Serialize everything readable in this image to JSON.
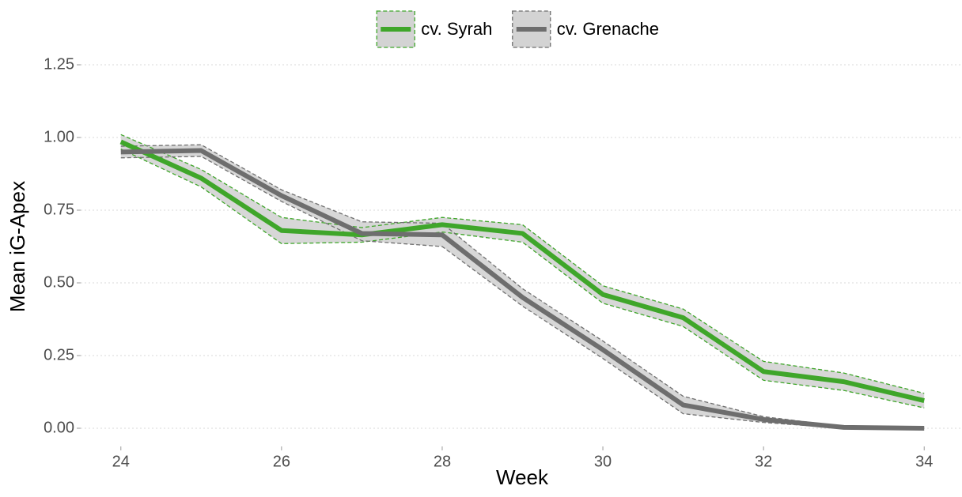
{
  "chart_data": {
    "type": "line",
    "x_label": "Week",
    "y_label": "Mean iG-Apex",
    "x": [
      24,
      25,
      26,
      27,
      28,
      29,
      30,
      31,
      32,
      33,
      34
    ],
    "series": [
      {
        "name": "cv. Syrah",
        "color": "#3fa62a",
        "band_color": "#d3d3d3",
        "values": [
          0.985,
          0.86,
          0.68,
          0.665,
          0.7,
          0.67,
          0.46,
          0.38,
          0.195,
          0.16,
          0.095
        ],
        "lower": [
          0.96,
          0.83,
          0.635,
          0.64,
          0.675,
          0.64,
          0.43,
          0.35,
          0.165,
          0.13,
          0.07
        ],
        "upper": [
          1.01,
          0.89,
          0.725,
          0.69,
          0.725,
          0.7,
          0.49,
          0.41,
          0.23,
          0.19,
          0.12
        ]
      },
      {
        "name": "cv. Grenache",
        "color": "#6e6e6e",
        "band_color": "#d3d3d3",
        "values": [
          0.95,
          0.955,
          0.8,
          0.67,
          0.665,
          0.45,
          0.27,
          0.08,
          0.03,
          0.003,
          0.0
        ],
        "lower": [
          0.93,
          0.935,
          0.78,
          0.645,
          0.625,
          0.42,
          0.24,
          0.05,
          0.02,
          0.0,
          0.0
        ],
        "upper": [
          0.97,
          0.975,
          0.82,
          0.71,
          0.705,
          0.48,
          0.3,
          0.11,
          0.04,
          0.006,
          0.0
        ]
      }
    ],
    "xlim": [
      23.5,
      34.5
    ],
    "xticks": [
      24,
      26,
      28,
      30,
      32,
      34
    ],
    "ylim": [
      -0.0625,
      1.3125
    ],
    "yticks": [
      {
        "value": 0,
        "label": "0.00"
      },
      0.25,
      {
        "value": 0.5,
        "label": "0.50"
      },
      0.75,
      {
        "value": 1,
        "label": "1.00"
      },
      1.25
    ],
    "grid": true,
    "legend": "top"
  }
}
